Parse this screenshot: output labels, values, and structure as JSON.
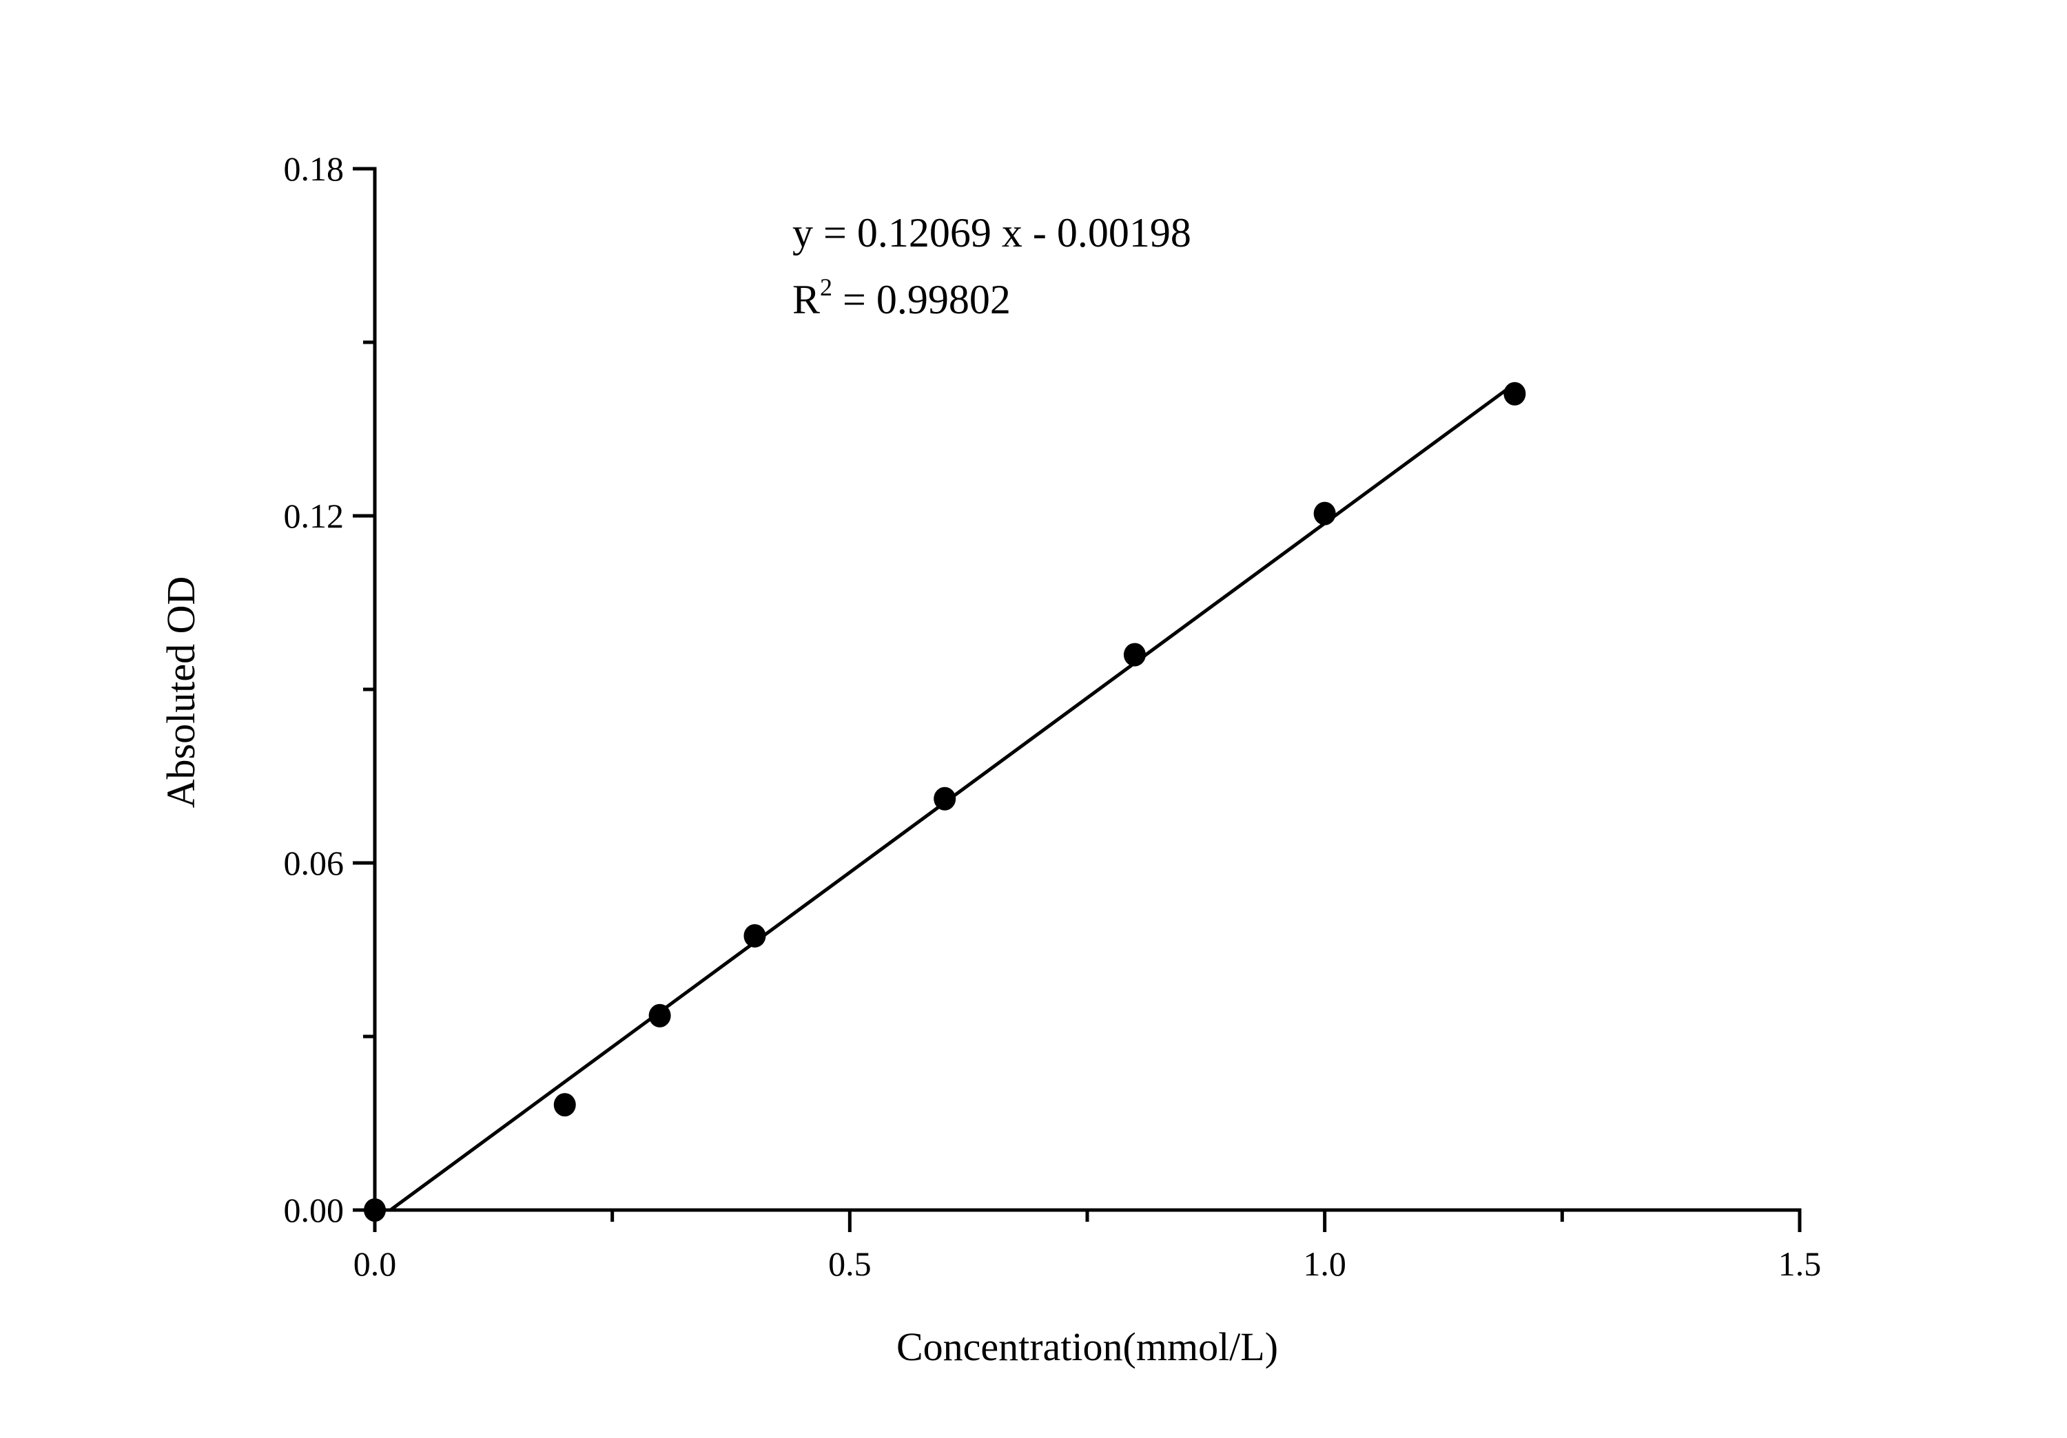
{
  "chart_data": {
    "type": "scatter",
    "title": "",
    "xlabel": "Concentration(mmol/L)",
    "ylabel": "Absoluted OD",
    "xlim": [
      0,
      1.5
    ],
    "ylim": [
      0,
      0.18
    ],
    "xticks": [
      "0.0",
      "0.5",
      "1.0",
      "1.5"
    ],
    "yticks": [
      "0.00",
      "0.06",
      "0.12",
      "0.18"
    ],
    "x_tick_values": [
      0,
      0.5,
      1.0,
      1.5
    ],
    "y_tick_values": [
      0,
      0.06,
      0.12,
      0.18
    ],
    "x_minor_step": 0.25,
    "y_minor_step": 0.03,
    "grid": false,
    "points": {
      "x": [
        0,
        0.2,
        0.3,
        0.4,
        0.6,
        0.8,
        1.0,
        1.2
      ],
      "y": [
        0.0,
        0.0182,
        0.0336,
        0.0474,
        0.0711,
        0.096,
        0.1204,
        0.1411
      ]
    },
    "fit": {
      "slope": 0.12069,
      "intercept": -0.00198,
      "x_range": [
        0.0164,
        1.2
      ],
      "equation_label": "y = 0.12069 x - 0.00198",
      "r2_prefix": "R",
      "r2_sup": "2",
      "r2_value": " = 0.99802"
    },
    "colors": {
      "marker": "#000000",
      "line": "#000000",
      "axis": "#000000"
    }
  }
}
